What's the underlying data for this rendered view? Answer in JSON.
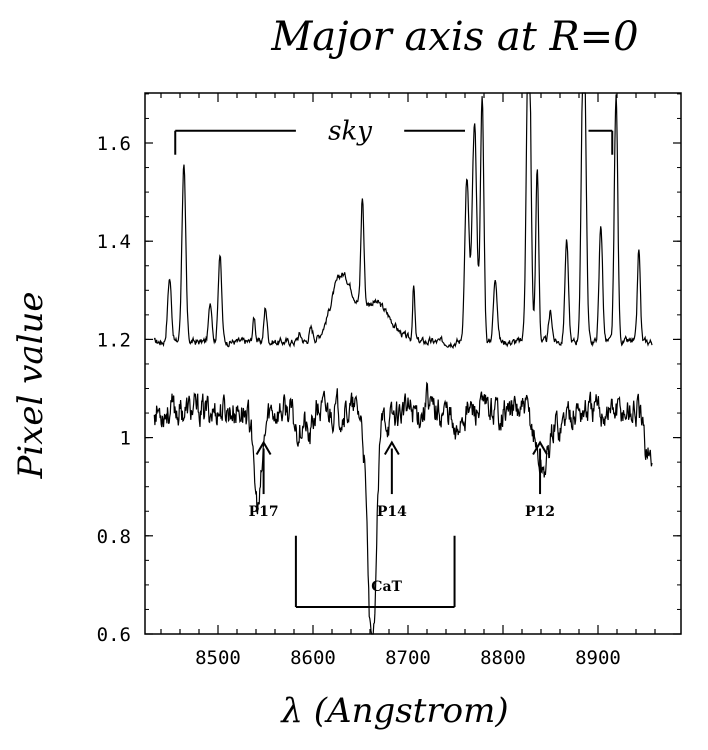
{
  "chart_data": {
    "type": "line",
    "title": "Major axis at R=0",
    "xlabel": "λ (Angstrom)",
    "ylabel": "Pixel value",
    "xlim": [
      8430,
      8960
    ],
    "ylim": [
      0.6,
      1.7
    ],
    "x_ticks": [
      8500,
      8600,
      8700,
      8800,
      8900
    ],
    "y_ticks": [
      {
        "value": 0.6,
        "label": "0.6"
      },
      {
        "value": 0.8,
        "label": "0.8"
      },
      {
        "value": 1.0,
        "label": "1"
      },
      {
        "value": 1.2,
        "label": "1.2"
      },
      {
        "value": 1.4,
        "label": "1.4"
      },
      {
        "value": 1.6,
        "label": "1.6"
      }
    ],
    "series": [
      {
        "key": "sky",
        "baseline": 1.195,
        "color": "#000000",
        "features": [
          {
            "x": 8449,
            "amp": 0.13,
            "w": 2.0
          },
          {
            "x": 8464,
            "amp": 0.36,
            "w": 2.0
          },
          {
            "x": 8492,
            "amp": 0.08,
            "w": 1.8
          },
          {
            "x": 8502,
            "amp": 0.18,
            "w": 1.8
          },
          {
            "x": 8538,
            "amp": 0.05,
            "w": 1.4
          },
          {
            "x": 8550,
            "amp": 0.07,
            "w": 1.6
          },
          {
            "x": 8586,
            "amp": 0.015,
            "w": 2.0
          },
          {
            "x": 8598,
            "amp": 0.025,
            "w": 2.0
          },
          {
            "x": 8630,
            "amp": 0.13,
            "w": 11.0
          },
          {
            "x": 8652,
            "amp": 0.22,
            "w": 1.6
          },
          {
            "x": 8665,
            "amp": 0.08,
            "w": 16.0
          },
          {
            "x": 8706,
            "amp": 0.11,
            "w": 1.2
          },
          {
            "x": 8762,
            "amp": 0.33,
            "w": 2.2
          },
          {
            "x": 8770,
            "amp": 0.44,
            "w": 2.4
          },
          {
            "x": 8778,
            "amp": 0.5,
            "w": 1.8
          },
          {
            "x": 8792,
            "amp": 0.13,
            "w": 2.0
          },
          {
            "x": 8827,
            "amp": 0.7,
            "w": 2.2
          },
          {
            "x": 8836,
            "amp": 0.35,
            "w": 1.6
          },
          {
            "x": 8850,
            "amp": 0.06,
            "w": 1.8
          },
          {
            "x": 8867,
            "amp": 0.21,
            "w": 1.8
          },
          {
            "x": 8885,
            "amp": 0.7,
            "w": 2.2
          },
          {
            "x": 8903,
            "amp": 0.24,
            "w": 1.8
          },
          {
            "x": 8919,
            "amp": 0.5,
            "w": 1.8
          },
          {
            "x": 8943,
            "amp": 0.19,
            "w": 1.5
          }
        ]
      },
      {
        "key": "object",
        "baseline": 1.055,
        "color": "#000000",
        "features": [
          {
            "x": 8535,
            "amp": 0.06,
            "w": 0.7
          },
          {
            "x": 8542,
            "amp": -0.2,
            "w": 4.5
          },
          {
            "x": 8584,
            "amp": -0.04,
            "w": 4.0
          },
          {
            "x": 8596,
            "amp": -0.06,
            "w": 3.0
          },
          {
            "x": 8662,
            "amp": -0.5,
            "w": 4.5
          },
          {
            "x": 8681,
            "amp": -0.02,
            "w": 4.0
          },
          {
            "x": 8720,
            "amp": 0.09,
            "w": 0.7
          },
          {
            "x": 8750,
            "amp": -0.06,
            "w": 3.0
          },
          {
            "x": 8842,
            "amp": -0.12,
            "w": 7.0
          },
          {
            "x": 8861,
            "amp": -0.03,
            "w": 3.0
          },
          {
            "x": 8950,
            "amp": -0.07,
            "w": 3.0
          },
          {
            "x": 8956,
            "amp": -0.1,
            "w": 2.0
          }
        ]
      }
    ],
    "annotations": {
      "sky_label": "sky",
      "sky_bracket": {
        "y": 1.625,
        "segments": [
          [
            8455,
            8582
          ],
          [
            8696,
            8760
          ],
          [
            8890,
            8915
          ]
        ],
        "tick_left": 8455,
        "tick_right": 8915
      },
      "cat_label": "CaT",
      "cat_bracket": {
        "y": 0.655,
        "x_start": 8582,
        "x_end": 8749,
        "top": 0.8
      },
      "arrows": [
        {
          "label": "P17",
          "x": 8548
        },
        {
          "label": "P14",
          "x": 8683
        },
        {
          "label": "P12",
          "x": 8839
        }
      ]
    }
  }
}
